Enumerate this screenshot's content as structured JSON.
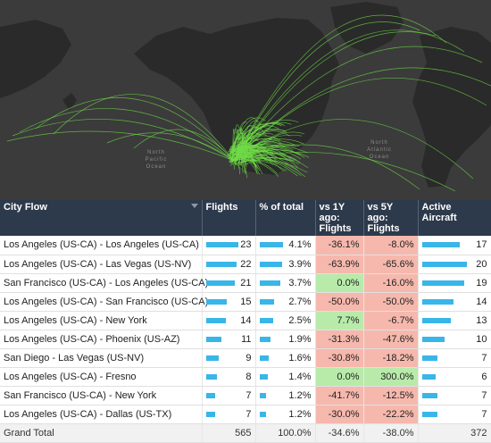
{
  "map": {
    "labels": {
      "north_pacific": "North\nPacific\nOcean",
      "north_atlantic": "North\nAtlantic\nOcean"
    },
    "colors": {
      "background": "#3b3b3b",
      "land": "#2a2a2a",
      "flow": "#6fdc47"
    }
  },
  "table": {
    "headers": {
      "city_flow": "City Flow",
      "flights": "Flights",
      "pct_total": "% of total",
      "vs_1y": "vs 1Y ago:\nFlights",
      "vs_5y": "vs 5Y ago:\nFlights",
      "active_aircraft": "Active Aircraft"
    },
    "rows": [
      {
        "city_flow": "Los Angeles (US-CA) - Los Angeles (US-CA)",
        "flights": "23",
        "pct": "4.1%",
        "vs1y": "-36.1%",
        "vs5y": "-8.0%",
        "aircraft": "17",
        "flights_frac": 1.0,
        "aircraft_frac": 0.85,
        "vs1y_sign": "neg",
        "vs5y_sign": "neg"
      },
      {
        "city_flow": "Los Angeles (US-CA) - Las Vegas (US-NV)",
        "flights": "22",
        "pct": "3.9%",
        "vs1y": "-63.9%",
        "vs5y": "-65.6%",
        "aircraft": "20",
        "flights_frac": 0.96,
        "aircraft_frac": 1.0,
        "vs1y_sign": "neg",
        "vs5y_sign": "neg"
      },
      {
        "city_flow": "San Francisco (US-CA) - Los Angeles (US-CA)",
        "flights": "21",
        "pct": "3.7%",
        "vs1y": "0.0%",
        "vs5y": "-16.0%",
        "aircraft": "19",
        "flights_frac": 0.91,
        "aircraft_frac": 0.95,
        "vs1y_sign": "pos",
        "vs5y_sign": "neg"
      },
      {
        "city_flow": "Los Angeles (US-CA) - San Francisco (US-CA)",
        "flights": "15",
        "pct": "2.7%",
        "vs1y": "-50.0%",
        "vs5y": "-50.0%",
        "aircraft": "14",
        "flights_frac": 0.65,
        "aircraft_frac": 0.7,
        "vs1y_sign": "neg",
        "vs5y_sign": "neg"
      },
      {
        "city_flow": "Los Angeles (US-CA) - New York",
        "flights": "14",
        "pct": "2.5%",
        "vs1y": "7.7%",
        "vs5y": "-6.7%",
        "aircraft": "13",
        "flights_frac": 0.61,
        "aircraft_frac": 0.65,
        "vs1y_sign": "pos",
        "vs5y_sign": "neg"
      },
      {
        "city_flow": "Los Angeles (US-CA) - Phoenix (US-AZ)",
        "flights": "11",
        "pct": "1.9%",
        "vs1y": "-31.3%",
        "vs5y": "-47.6%",
        "aircraft": "10",
        "flights_frac": 0.48,
        "aircraft_frac": 0.5,
        "vs1y_sign": "neg",
        "vs5y_sign": "neg"
      },
      {
        "city_flow": "San Diego - Las Vegas (US-NV)",
        "flights": "9",
        "pct": "1.6%",
        "vs1y": "-30.8%",
        "vs5y": "-18.2%",
        "aircraft": "7",
        "flights_frac": 0.39,
        "aircraft_frac": 0.35,
        "vs1y_sign": "neg",
        "vs5y_sign": "neg"
      },
      {
        "city_flow": "Los Angeles (US-CA) - Fresno",
        "flights": "8",
        "pct": "1.4%",
        "vs1y": "0.0%",
        "vs5y": "300.0%",
        "aircraft": "6",
        "flights_frac": 0.35,
        "aircraft_frac": 0.3,
        "vs1y_sign": "pos",
        "vs5y_sign": "pos"
      },
      {
        "city_flow": "San Francisco (US-CA) - New York",
        "flights": "7",
        "pct": "1.2%",
        "vs1y": "-41.7%",
        "vs5y": "-12.5%",
        "aircraft": "7",
        "flights_frac": 0.3,
        "aircraft_frac": 0.35,
        "vs1y_sign": "neg",
        "vs5y_sign": "neg"
      },
      {
        "city_flow": "Los Angeles (US-CA) - Dallas (US-TX)",
        "flights": "7",
        "pct": "1.2%",
        "vs1y": "-30.0%",
        "vs5y": "-22.2%",
        "aircraft": "7",
        "flights_frac": 0.3,
        "aircraft_frac": 0.35,
        "vs1y_sign": "neg",
        "vs5y_sign": "neg"
      }
    ],
    "total": {
      "label": "Grand Total",
      "flights": "565",
      "pct": "100.0%",
      "vs1y": "-34.6%",
      "vs5y": "-38.0%",
      "aircraft": "372"
    }
  }
}
